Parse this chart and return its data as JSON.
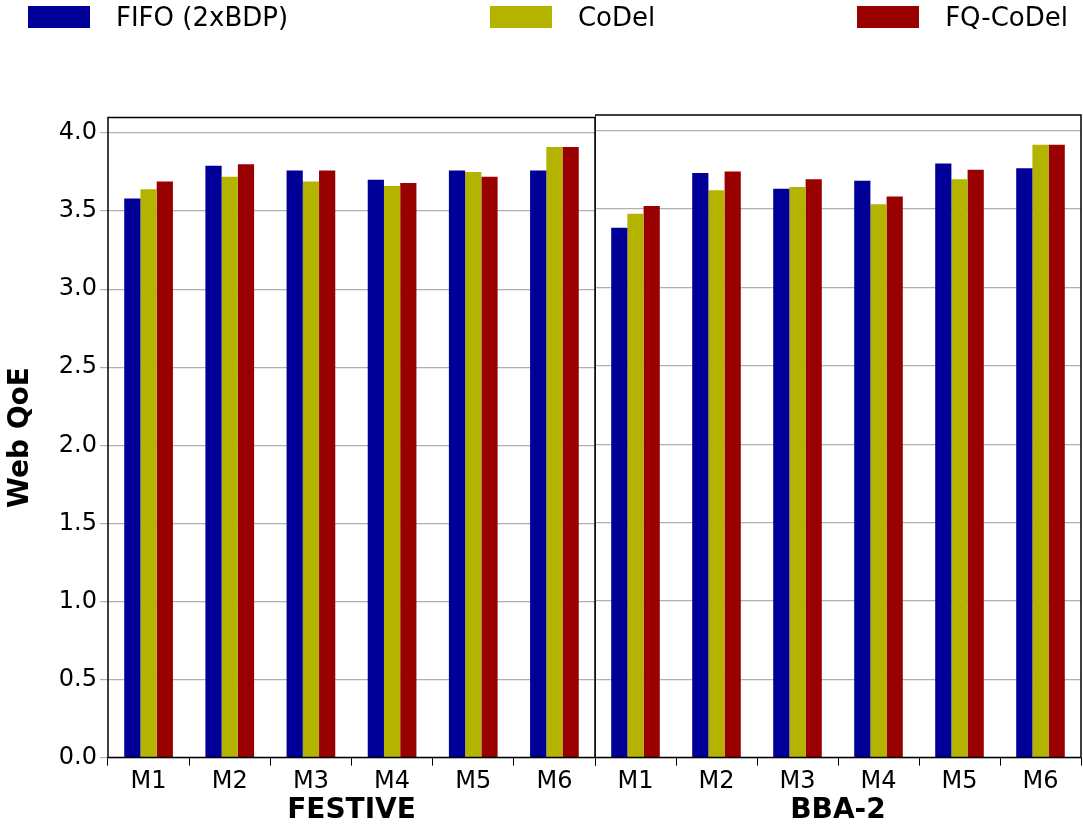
{
  "chart_data": [
    {
      "type": "bar",
      "xlabel": "FESTIVE",
      "ylabel": "Web QoE",
      "categories": [
        "M1",
        "M2",
        "M3",
        "M4",
        "M5",
        "M6"
      ],
      "ylim": [
        0,
        4.1
      ],
      "yticks": [
        {
          "value": 0,
          "label": "0.0"
        },
        0.5,
        {
          "value": 1,
          "label": "1.0"
        },
        1.5,
        {
          "value": 2,
          "label": "2.0"
        },
        2.5,
        {
          "value": 3,
          "label": "3.0"
        },
        3.5,
        {
          "value": 4,
          "label": "4.0"
        }
      ],
      "grid": "y",
      "legend": "top",
      "series": [
        {
          "name": "FIFO (2xBDP)",
          "color": "#000099",
          "values": [
            3.58,
            3.79,
            3.76,
            3.7,
            3.76,
            3.76
          ]
        },
        {
          "name": "CoDel",
          "color": "#b3b300",
          "values": [
            3.64,
            3.72,
            3.69,
            3.66,
            3.75,
            3.91
          ]
        },
        {
          "name": "FQ-CoDel",
          "color": "#990000",
          "values": [
            3.69,
            3.8,
            3.76,
            3.68,
            3.72,
            3.91
          ]
        }
      ]
    },
    {
      "type": "bar",
      "xlabel": "BBA-2",
      "categories": [
        "M1",
        "M2",
        "M3",
        "M4",
        "M5",
        "M6"
      ],
      "ylim": [
        0,
        4.1
      ],
      "yticks": [
        0,
        0.5,
        1,
        1.5,
        2,
        2.5,
        3,
        3.5,
        4
      ],
      "grid": "y",
      "tick_labels": "x",
      "series": [
        {
          "color": "#000099",
          "values": [
            3.38,
            3.73,
            3.63,
            3.68,
            3.79,
            3.76
          ]
        },
        {
          "color": "#b3b300",
          "values": [
            3.47,
            3.62,
            3.64,
            3.53,
            3.69,
            3.91
          ]
        },
        {
          "color": "#990000",
          "values": [
            3.52,
            3.74,
            3.69,
            3.58,
            3.75,
            3.91
          ]
        }
      ]
    }
  ]
}
